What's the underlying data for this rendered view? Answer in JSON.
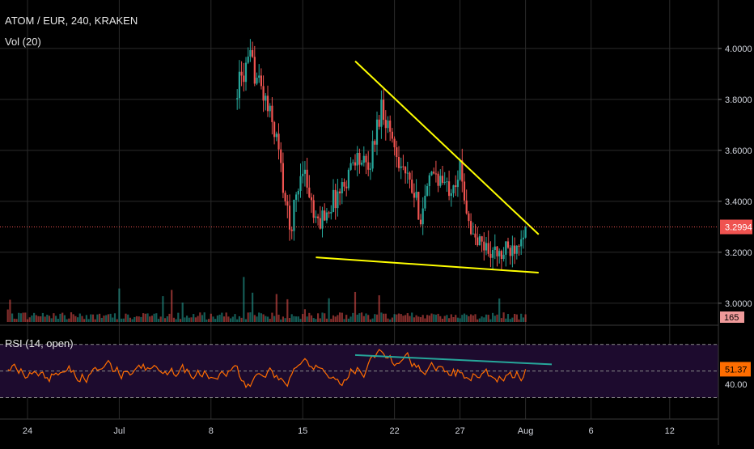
{
  "header": {
    "symbol_title": "ATOM / EUR, 240, KRAKEN",
    "volume_label": "Vol (20)",
    "rsi_label": "RSI (14, open)"
  },
  "colors": {
    "background": "#000000",
    "grid": "#2a2a2a",
    "up": "#26a69a",
    "down": "#ef5350",
    "trendline": "#ffff00",
    "rsi_line": "#ff6d00",
    "rsi_band": "#1d0b2e",
    "rsi_trendline": "#26a69a",
    "price_marker": "#ef5350",
    "axis_text": "#d1d4dc"
  },
  "chart_data": [
    {
      "type": "candlestick",
      "title": "ATOM / EUR, 240, KRAKEN",
      "price_axis_ticks": [
        4.0,
        3.8,
        3.6,
        3.4,
        3.2,
        3.0
      ],
      "price_axis_labels": [
        "4.0000",
        "3.8000",
        "3.6000",
        "3.4000",
        "3.2000",
        "3.0000"
      ],
      "ylim": [
        2.92,
        4.19
      ],
      "current_price": 3.2994,
      "current_price_label": "3.2994",
      "x_axis_labels": [
        "24",
        "Jul",
        "8",
        "15",
        "22",
        "27",
        "Aug",
        "6",
        "12"
      ],
      "x_axis_dates": [
        "Jun 24",
        "Jul 1",
        "Jul 8",
        "Jul 15",
        "Jul 22",
        "Jul 27",
        "Aug 1",
        "Aug 6",
        "Aug 12"
      ],
      "series_first_date": "Jul 10",
      "series_last_date": "Aug 1",
      "trendlines": [
        {
          "name": "descending resistance",
          "from": [
            "Jul 19",
            3.95
          ],
          "to": [
            "Aug 2",
            3.27
          ]
        },
        {
          "name": "support",
          "from": [
            "Jul 16",
            3.18
          ],
          "to": [
            "Aug 2",
            3.12
          ]
        }
      ],
      "close_path": [
        [
          "Jul 10",
          3.85
        ],
        [
          "Jul 11",
          3.95
        ],
        [
          "Jul 12",
          3.82
        ],
        [
          "Jul 13",
          3.65
        ],
        [
          "Jul 14",
          3.28
        ],
        [
          "Jul 15",
          3.55
        ],
        [
          "Jul 16",
          3.3
        ],
        [
          "Jul 17",
          3.38
        ],
        [
          "Jul 18",
          3.45
        ],
        [
          "Jul 19",
          3.58
        ],
        [
          "Jul 20",
          3.52
        ],
        [
          "Jul 21",
          3.78
        ],
        [
          "Jul 22",
          3.62
        ],
        [
          "Jul 23",
          3.48
        ],
        [
          "Jul 24",
          3.35
        ],
        [
          "Jul 25",
          3.52
        ],
        [
          "Jul 26",
          3.45
        ],
        [
          "Jul 27",
          3.52
        ],
        [
          "Jul 28",
          3.25
        ],
        [
          "Jul 29",
          3.22
        ],
        [
          "Jul 30",
          3.18
        ],
        [
          "Jul 31",
          3.22
        ],
        [
          "Aug 1",
          3.31
        ]
      ],
      "candles_per_day": 6
    },
    {
      "type": "bar",
      "title": "Vol (20)",
      "last_value_label": "165"
    },
    {
      "type": "line",
      "title": "RSI (14, open)",
      "ylim": [
        20,
        82
      ],
      "bands": [
        70,
        30
      ],
      "reference_lines": [
        70,
        50,
        30
      ],
      "current_value": 51.37,
      "current_value_label": "51.37",
      "axis_labels": [
        "40.00"
      ],
      "axis_ticks": [
        40
      ],
      "trendline": {
        "from": [
          "Jul 19",
          62
        ],
        "to": [
          "Aug 3",
          55
        ]
      }
    }
  ]
}
